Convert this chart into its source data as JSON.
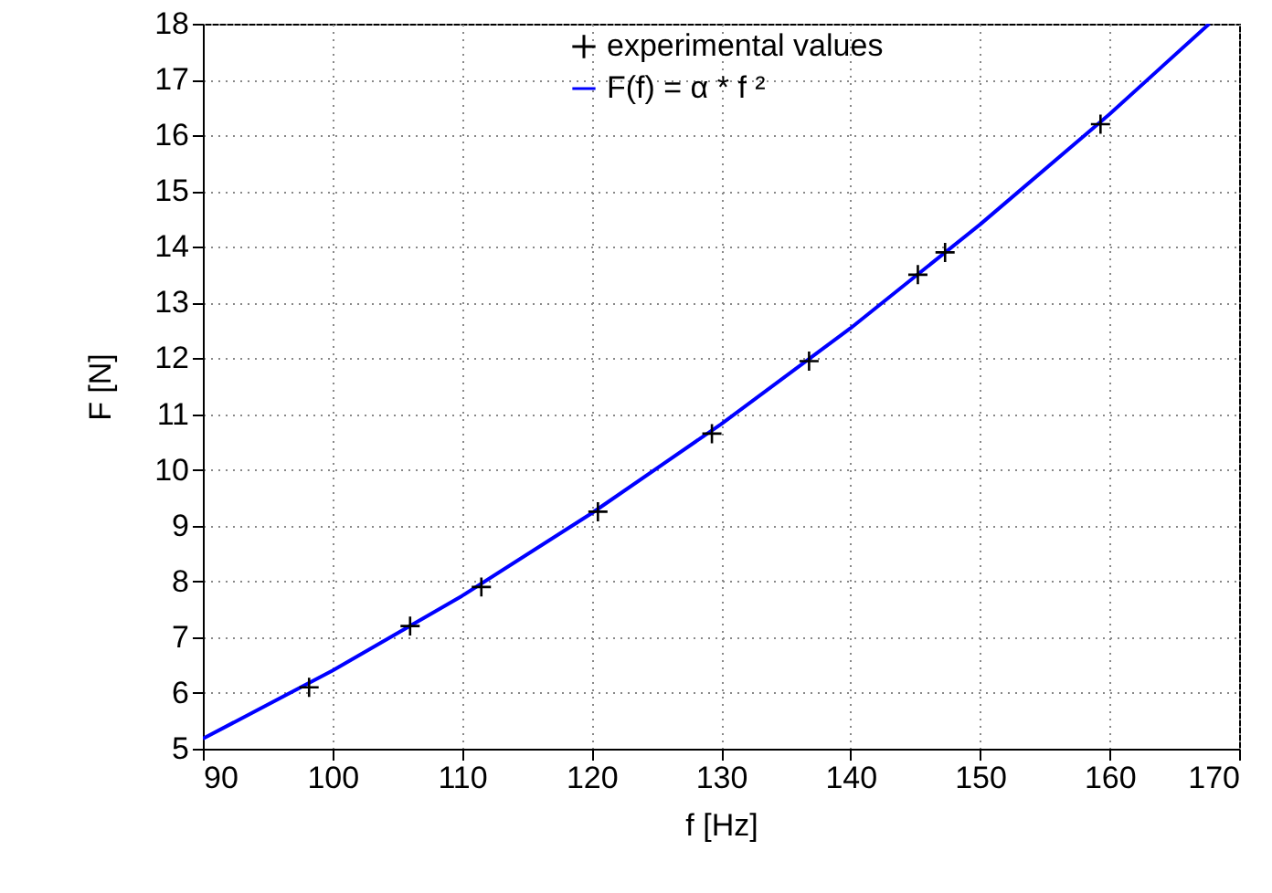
{
  "chart_data": {
    "type": "scatter",
    "xlabel": "f [Hz]",
    "ylabel": "F [N]",
    "xlim": [
      90,
      170
    ],
    "xticks": [
      90,
      100,
      110,
      120,
      130,
      140,
      150,
      160,
      170
    ],
    "ylim": [
      5,
      18
    ],
    "yticks": [
      5,
      6,
      7,
      8,
      9,
      10,
      11,
      12,
      13,
      14,
      15,
      16,
      17,
      18
    ],
    "grid": true,
    "legend": "top right",
    "series": [
      {
        "name": "experimental values",
        "marker": "cross",
        "color": "#000000",
        "x": [
          98.2,
          106,
          111.5,
          120.5,
          129.3,
          136.8,
          145.2,
          147.3,
          159.3
        ],
        "values": [
          6.1,
          7.2,
          7.9,
          9.25,
          10.65,
          11.95,
          13.5,
          13.9,
          16.2
        ]
      },
      {
        "name": "F(f) = α * f ²",
        "type": "line",
        "color": "#0000ff",
        "x": [
          90,
          100,
          110,
          120,
          130,
          140,
          150,
          160,
          167.7
        ],
        "values": [
          5.18,
          6.4,
          7.74,
          9.22,
          10.82,
          12.54,
          14.4,
          16.38,
          18.0
        ]
      }
    ]
  }
}
